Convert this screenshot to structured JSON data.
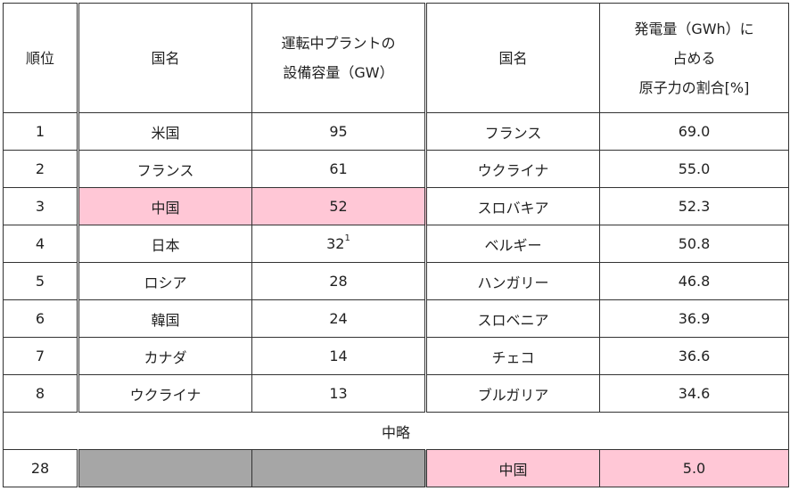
{
  "colors": {
    "highlight": "#ffc7d6",
    "omitted": "#a6a6a6"
  },
  "header": {
    "rank": "順位",
    "country1": "国名",
    "capacity_line1": "運転中プラントの",
    "capacity_line2": "設備容量（GW）",
    "country2": "国名",
    "share_line1": "発電量（GWh）に",
    "share_line2": "占める",
    "share_line3": "原子力の割合[%]"
  },
  "rows": [
    {
      "rank": "1",
      "country1": "米国",
      "capacity": "95",
      "note": "",
      "country2": "フランス",
      "share": "69.0"
    },
    {
      "rank": "2",
      "country1": "フランス",
      "capacity": "61",
      "note": "",
      "country2": "ウクライナ",
      "share": "55.0"
    },
    {
      "rank": "3",
      "country1": "中国",
      "capacity": "52",
      "note": "",
      "country2": "スロバキア",
      "share": "52.3"
    },
    {
      "rank": "4",
      "country1": "日本",
      "capacity": "32",
      "note": "1",
      "country2": "ベルギー",
      "share": "50.8"
    },
    {
      "rank": "5",
      "country1": "ロシア",
      "capacity": "28",
      "note": "",
      "country2": "ハンガリー",
      "share": "46.8"
    },
    {
      "rank": "6",
      "country1": "韓国",
      "capacity": "24",
      "note": "",
      "country2": "スロベニア",
      "share": "36.9"
    },
    {
      "rank": "7",
      "country1": "カナダ",
      "capacity": "14",
      "note": "",
      "country2": "チェコ",
      "share": "36.6"
    },
    {
      "rank": "8",
      "country1": "ウクライナ",
      "capacity": "13",
      "note": "",
      "country2": "ブルガリア",
      "share": "34.6"
    }
  ],
  "omitted_label": "中略",
  "last_row": {
    "rank": "28",
    "country2": "中国",
    "share": "5.0"
  }
}
